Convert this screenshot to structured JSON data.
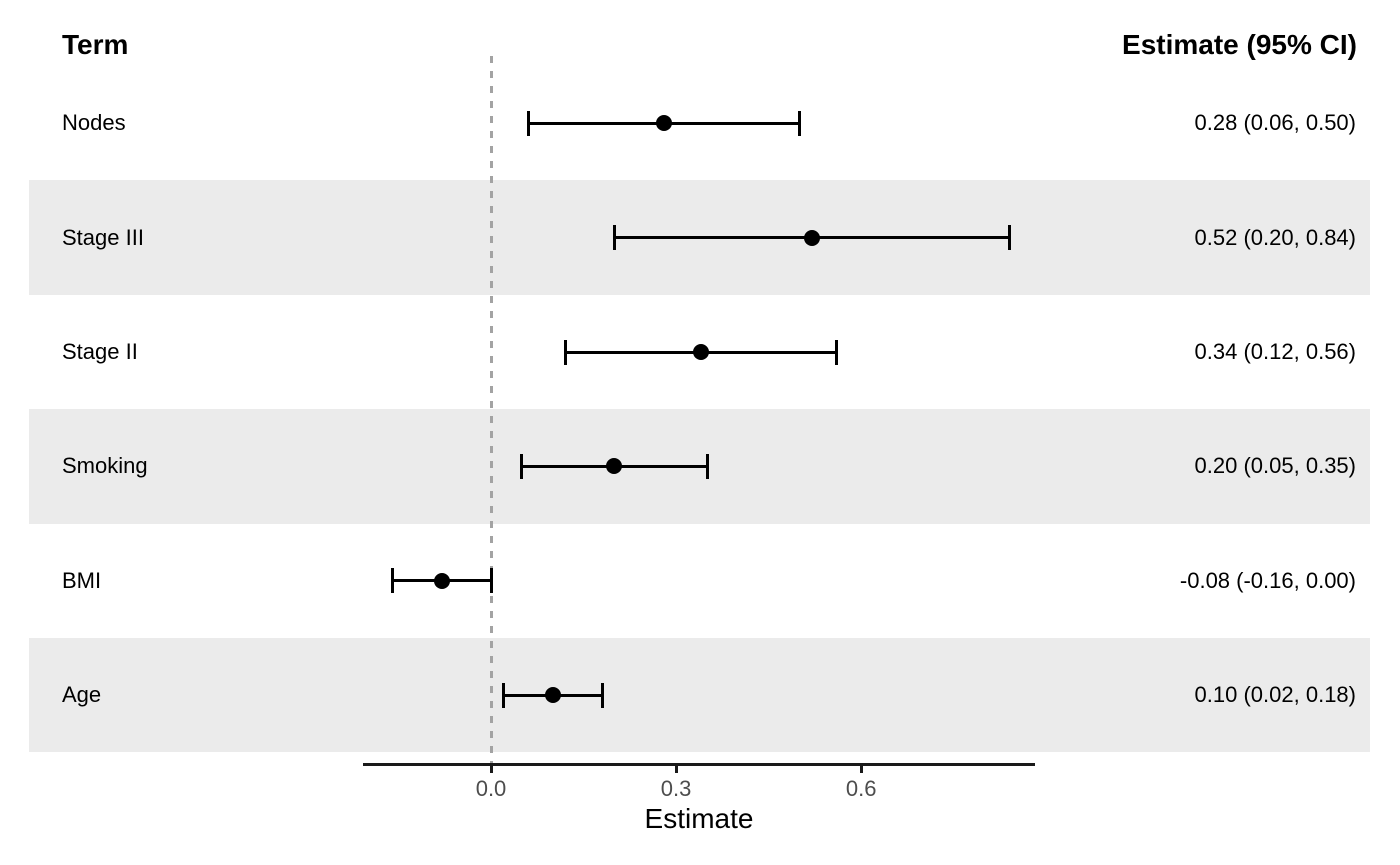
{
  "header": {
    "term": "Term",
    "estimate_ci": "Estimate (95% CI)"
  },
  "axis": {
    "label": "Estimate"
  },
  "colors": {
    "band": "#ebebeb",
    "marker": "#000000",
    "reference_line": "#a3a3a3",
    "axis_line": "#1a1a1a",
    "tick_text": "#4d4d4d",
    "text": "#000000"
  },
  "chart_data": {
    "type": "scatter",
    "subtype": "forest-plot",
    "title": "",
    "xlabel": "Estimate",
    "ylabel": "",
    "column_headers": [
      "Term",
      "Estimate (95% CI)"
    ],
    "x_ticks": [
      0.0,
      0.3,
      0.6
    ],
    "x_tick_labels": [
      "0.0",
      "0.3",
      "0.6"
    ],
    "xlim": [
      -0.21,
      0.88
    ],
    "reference_line_x": 0,
    "grid": false,
    "legend": false,
    "row_striping": "alternate gray bands on rows 2, 4, 6",
    "rows": [
      {
        "term": "Nodes",
        "estimate": 0.28,
        "ci_low": 0.06,
        "ci_high": 0.5,
        "label": "0.28 (0.06, 0.50)"
      },
      {
        "term": "Stage III",
        "estimate": 0.52,
        "ci_low": 0.2,
        "ci_high": 0.84,
        "label": "0.52 (0.20, 0.84)"
      },
      {
        "term": "Stage II",
        "estimate": 0.34,
        "ci_low": 0.12,
        "ci_high": 0.56,
        "label": "0.34 (0.12, 0.56)"
      },
      {
        "term": "Smoking",
        "estimate": 0.2,
        "ci_low": 0.05,
        "ci_high": 0.35,
        "label": "0.20 (0.05, 0.35)"
      },
      {
        "term": "BMI",
        "estimate": -0.08,
        "ci_low": -0.16,
        "ci_high": 0.0,
        "label": "-0.08 (-0.16, 0.00)"
      },
      {
        "term": "Age",
        "estimate": 0.1,
        "ci_low": 0.02,
        "ci_high": 0.18,
        "label": "0.10 (0.02, 0.18)"
      }
    ]
  }
}
